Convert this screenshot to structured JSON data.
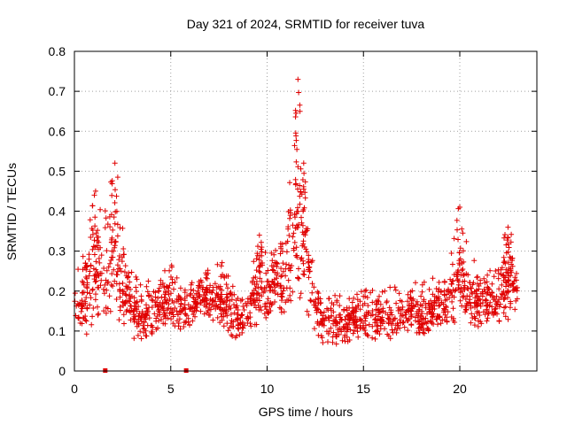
{
  "chart_data": {
    "type": "scatter",
    "title": "Day 321 of 2024, SRMTID for receiver tuva",
    "xlabel": "GPS time / hours",
    "ylabel": "SRMTID / TECUs",
    "xlim": [
      0,
      24
    ],
    "ylim": [
      0,
      0.8
    ],
    "xticks": [
      0,
      5,
      10,
      15,
      20
    ],
    "xtick_labels": [
      "0",
      "5",
      "10",
      "15",
      "20"
    ],
    "yticks": [
      0,
      0.1,
      0.2,
      0.3,
      0.4,
      0.5,
      0.6,
      0.7,
      0.8
    ],
    "ytick_labels": [
      "0",
      "0.1",
      "0.2",
      "0.3",
      "0.4",
      "0.5",
      "0.6",
      "0.7",
      "0.8"
    ],
    "grid": true,
    "marker": "plus",
    "color": "#e00000",
    "zero_markers_x": [
      1.6,
      5.8
    ],
    "series": [
      {
        "name": "SRMTID",
        "envelope_x": [
          0,
          0.5,
          1.0,
          1.5,
          2.0,
          2.5,
          3.0,
          3.5,
          4.0,
          4.5,
          5.0,
          5.5,
          6.0,
          6.5,
          7.0,
          7.5,
          8.0,
          8.5,
          9.0,
          9.5,
          10.0,
          10.5,
          11.0,
          11.5,
          12.0,
          12.5,
          13.0,
          13.5,
          14.0,
          14.5,
          15.0,
          15.5,
          16.0,
          16.5,
          17.0,
          17.5,
          18.0,
          18.5,
          19.0,
          19.5,
          20.0,
          20.5,
          21.0,
          21.5,
          22.0,
          22.5,
          23.0
        ],
        "envelope_low": [
          0.1,
          0.1,
          0.12,
          0.14,
          0.13,
          0.12,
          0.08,
          0.08,
          0.08,
          0.1,
          0.11,
          0.09,
          0.12,
          0.14,
          0.13,
          0.12,
          0.1,
          0.08,
          0.1,
          0.12,
          0.14,
          0.15,
          0.15,
          0.17,
          0.16,
          0.1,
          0.06,
          0.07,
          0.07,
          0.08,
          0.08,
          0.08,
          0.08,
          0.08,
          0.09,
          0.1,
          0.09,
          0.1,
          0.11,
          0.12,
          0.13,
          0.12,
          0.11,
          0.12,
          0.12,
          0.14,
          0.15
        ],
        "envelope_high": [
          0.25,
          0.3,
          0.45,
          0.4,
          0.52,
          0.39,
          0.25,
          0.22,
          0.24,
          0.27,
          0.31,
          0.24,
          0.22,
          0.24,
          0.26,
          0.28,
          0.27,
          0.22,
          0.22,
          0.34,
          0.3,
          0.36,
          0.4,
          0.73,
          0.52,
          0.26,
          0.21,
          0.22,
          0.2,
          0.22,
          0.23,
          0.22,
          0.21,
          0.21,
          0.22,
          0.23,
          0.22,
          0.23,
          0.25,
          0.28,
          0.41,
          0.29,
          0.27,
          0.26,
          0.3,
          0.36,
          0.3
        ],
        "peaks": [
          {
            "x": 1.1,
            "y": 0.45
          },
          {
            "x": 2.1,
            "y": 0.52
          },
          {
            "x": 9.6,
            "y": 0.34
          },
          {
            "x": 11.6,
            "y": 0.73
          },
          {
            "x": 11.9,
            "y": 0.52
          },
          {
            "x": 20.0,
            "y": 0.41
          },
          {
            "x": 22.5,
            "y": 0.36
          }
        ]
      }
    ]
  }
}
